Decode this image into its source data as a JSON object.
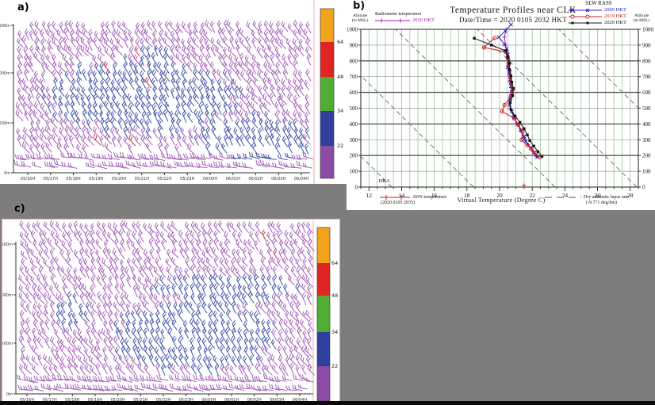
{
  "background": "#7d7d7d",
  "chart_data": [
    {
      "type": "windbarb",
      "label": "a)",
      "description": "Time-height wind barb cross-section, colors = wind speed bins",
      "x_ticks": [
        "05/16H",
        "05/17H",
        "05/18H",
        "05/19H",
        "05/20H",
        "05/21H",
        "05/22H",
        "05/23H",
        "06/00H",
        "06/01H",
        "06/02H",
        "06/03H",
        "06/04H"
      ],
      "y_ticks": [
        "1500m",
        "1000m",
        "500m",
        "0m"
      ],
      "colorbar": {
        "labels": [
          "64",
          "48",
          "34",
          "22"
        ],
        "colors": [
          "#F2A41C",
          "#E02424",
          "#4FAE33",
          "#2F3F9E",
          "#8C4CA6"
        ]
      },
      "barb_colors": {
        "low": "#A45FB8",
        "mid": "#4053A8",
        "rare": "#CC3344"
      },
      "blue_regions": [
        [
          0.42,
          0.5,
          0.33,
          0.26
        ],
        [
          0.82,
          0.2,
          0.2,
          0.16
        ],
        [
          0.47,
          0.8,
          0.06,
          0.08
        ]
      ],
      "grid": {
        "cols": 50,
        "rows": 18
      },
      "seed": 7
    },
    {
      "type": "line",
      "label": "b)",
      "title": "Temperature Profiles near CLK",
      "subtitle": "Date/Time = 2020 0105 2032 HKT",
      "left_axis_line1": "Altitude",
      "left_axis_line2": "(m MSL)",
      "right_axis_line1": "Altitude",
      "right_axis_line2": "(m MSL)",
      "radiometer_legend_title": "Radiometer temperature",
      "rass_title": "SLW RASS",
      "x_label": "Virtual Temperature (Degree C)",
      "aws_line1": "AWS temperature",
      "aws_line2": "(2020 0105 2035)",
      "dry_line1": "Dry adiabatic lapse rate",
      "dry_line2": "(-9.771 deg/km)",
      "station_label": "HKA",
      "station_pos": {
        "temp": 12.6,
        "alt": 30
      },
      "aws_point": {
        "temp": 21.5,
        "alt": 10,
        "color": "#cc2020"
      },
      "x_range": [
        11.5,
        28.5
      ],
      "y_range": [
        0,
        1000
      ],
      "x_ticks": [
        12,
        14,
        16,
        18,
        20,
        22,
        24,
        26,
        28
      ],
      "x_minor_step": 0.5,
      "y_ticks": [
        0,
        100,
        200,
        300,
        400,
        500,
        600,
        700,
        800,
        900,
        1000
      ],
      "dry_lapse_deg_per_km": -9.771,
      "dry_adiabat_surface_temps": [
        13.4,
        18.4,
        23.4,
        28.4,
        33.4
      ],
      "series": [
        {
          "name": "2030 HKT",
          "instrument": "Radiometer",
          "color": "#A020B0",
          "marker": "+",
          "points": [
            [
              20.4,
              1000
            ],
            [
              20.3,
              950
            ],
            [
              20.35,
              900
            ],
            [
              20.45,
              855
            ],
            [
              20.5,
              810
            ],
            [
              20.55,
              765
            ],
            [
              20.6,
              720
            ],
            [
              20.65,
              675
            ],
            [
              20.7,
              630
            ],
            [
              20.7,
              585
            ],
            [
              20.6,
              540
            ],
            [
              20.65,
              495
            ],
            [
              20.85,
              450
            ],
            [
              21.05,
              405
            ],
            [
              21.3,
              360
            ],
            [
              21.5,
              315
            ],
            [
              21.75,
              270
            ],
            [
              22.0,
              230
            ],
            [
              22.25,
              195
            ]
          ]
        },
        {
          "name": "2009 HKT",
          "instrument": "SLW RASS",
          "color": "#2323C3",
          "marker": "x",
          "points": [
            [
              20.7,
              1030
            ],
            [
              20.35,
              990
            ],
            [
              19.95,
              950
            ],
            [
              20.3,
              905
            ],
            [
              20.45,
              875
            ],
            [
              20.5,
              840
            ],
            [
              20.55,
              800
            ],
            [
              20.5,
              760
            ],
            [
              20.6,
              720
            ],
            [
              20.65,
              680
            ],
            [
              20.7,
              640
            ],
            [
              20.75,
              600
            ],
            [
              20.65,
              560
            ],
            [
              20.6,
              520
            ],
            [
              20.75,
              480
            ],
            [
              20.9,
              440
            ],
            [
              21.1,
              400
            ],
            [
              21.3,
              360
            ],
            [
              21.5,
              320
            ],
            [
              21.6,
              290
            ],
            [
              21.9,
              250
            ],
            [
              22.1,
              220
            ],
            [
              22.3,
              190
            ]
          ]
        },
        {
          "name": "2019 HKT",
          "instrument": "SLW RASS",
          "color": "#CC2020",
          "marker": "o",
          "points": [
            [
              19.7,
              945
            ],
            [
              19.05,
              885
            ],
            [
              20.35,
              858
            ],
            [
              20.5,
              820
            ],
            [
              20.55,
              780
            ],
            [
              20.6,
              740
            ],
            [
              20.65,
              700
            ],
            [
              20.7,
              660
            ],
            [
              20.8,
              620
            ],
            [
              20.7,
              575
            ],
            [
              20.3,
              520
            ],
            [
              20.15,
              480
            ],
            [
              20.9,
              435
            ],
            [
              21.15,
              395
            ],
            [
              21.4,
              350
            ],
            [
              21.35,
              300
            ],
            [
              21.7,
              265
            ],
            [
              21.95,
              240
            ],
            [
              22.2,
              215
            ],
            [
              22.5,
              190
            ]
          ]
        },
        {
          "name": "2029 HKT",
          "instrument": "SLW RASS",
          "color": "#151515",
          "marker": "s",
          "points": [
            [
              18.45,
              943
            ],
            [
              19.5,
              900
            ],
            [
              20.35,
              865
            ],
            [
              20.5,
              825
            ],
            [
              20.6,
              785
            ],
            [
              20.6,
              745
            ],
            [
              20.7,
              705
            ],
            [
              20.75,
              665
            ],
            [
              20.85,
              625
            ],
            [
              20.8,
              580
            ],
            [
              20.65,
              535
            ],
            [
              20.7,
              490
            ],
            [
              20.95,
              450
            ],
            [
              21.25,
              410
            ],
            [
              21.5,
              370
            ],
            [
              21.7,
              330
            ],
            [
              21.85,
              295
            ],
            [
              22.1,
              260
            ],
            [
              22.35,
              225
            ],
            [
              22.6,
              195
            ]
          ]
        }
      ]
    },
    {
      "type": "windbarb",
      "label": "c)",
      "description": "Time-height wind barb cross-section, colors = wind speed bins",
      "x_ticks": [
        "05/16H",
        "05/17H",
        "05/18H",
        "05/19H",
        "05/20H",
        "05/21H",
        "05/22H",
        "05/23H",
        "06/00H",
        "06/01H",
        "06/02H",
        "06/03H",
        "06/04H"
      ],
      "y_ticks": [
        "1500m",
        "1000m",
        "500m",
        "0m"
      ],
      "colorbar": {
        "labels": [
          "64",
          "48",
          "34",
          "22"
        ],
        "colors": [
          "#F2A41C",
          "#E02424",
          "#4FAE33",
          "#2F3F9E",
          "#8C4CA6"
        ]
      },
      "barb_colors": {
        "low": "#A45FB8",
        "mid": "#4053A8",
        "rare": "#CC3344"
      },
      "blue_regions": [
        [
          0.59,
          0.31,
          0.29,
          0.21
        ],
        [
          0.7,
          0.62,
          0.25,
          0.09
        ],
        [
          0.17,
          0.45,
          0.06,
          0.1
        ]
      ],
      "grid": {
        "cols": 50,
        "rows": 19
      },
      "seed": 13
    }
  ]
}
